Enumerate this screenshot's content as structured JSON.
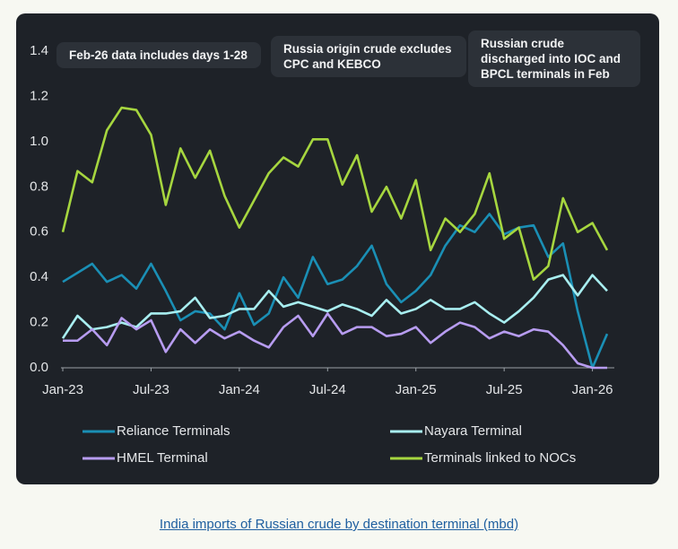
{
  "chart_data": {
    "type": "line",
    "categories": [
      "Jan-23",
      null,
      null,
      null,
      null,
      null,
      "Jul-23",
      null,
      null,
      null,
      null,
      null,
      "Jan-24",
      null,
      null,
      null,
      null,
      null,
      "Jul-24",
      null,
      null,
      null,
      null,
      null,
      "Jan-25",
      null,
      null,
      null,
      null,
      null,
      "Jul-25",
      null,
      null,
      null,
      null,
      null,
      "Jan-26",
      null
    ],
    "ylim": [
      0,
      1.4
    ],
    "yticks": [
      {
        "value": 0,
        "label": "0.0"
      },
      0.2,
      0.4,
      0.6,
      0.8,
      {
        "value": 1,
        "label": "1.0"
      },
      1.2,
      1.4
    ],
    "annotations": [
      "Feb-26 data includes days 1-28",
      "Russia origin crude excludes CPC and KEBCO",
      "Russian crude discharged into IOC and BPCL terminals in Feb"
    ],
    "series": [
      {
        "name": "Reliance Terminals",
        "color": "#1a8fb5",
        "values": [
          0.38,
          0.42,
          0.46,
          0.38,
          0.41,
          0.35,
          0.46,
          0.34,
          0.21,
          0.25,
          0.24,
          0.17,
          0.33,
          0.19,
          0.24,
          0.4,
          0.31,
          0.49,
          0.37,
          0.39,
          0.45,
          0.54,
          0.37,
          0.29,
          0.34,
          0.41,
          0.54,
          0.63,
          0.6,
          0.68,
          0.59,
          0.62,
          0.63,
          0.49,
          0.55,
          0.25,
          0,
          0.15
        ]
      },
      {
        "name": "Nayara Terminal",
        "color": "#a8eef0",
        "values": [
          0.13,
          0.23,
          0.17,
          0.18,
          0.2,
          0.18,
          0.24,
          0.24,
          0.25,
          0.31,
          0.22,
          0.23,
          0.26,
          0.26,
          0.34,
          0.27,
          0.29,
          0.27,
          0.25,
          0.28,
          0.26,
          0.23,
          0.3,
          0.24,
          0.26,
          0.3,
          0.26,
          0.26,
          0.29,
          0.24,
          0.2,
          0.25,
          0.31,
          0.39,
          0.41,
          0.32,
          0.41,
          0.34
        ]
      },
      {
        "name": "HMEL Terminal",
        "color": "#b79cf0",
        "values": [
          0.12,
          0.12,
          0.17,
          0.1,
          0.22,
          0.17,
          0.21,
          0.07,
          0.17,
          0.11,
          0.17,
          0.13,
          0.16,
          0.12,
          0.09,
          0.18,
          0.23,
          0.14,
          0.24,
          0.15,
          0.18,
          0.18,
          0.14,
          0.15,
          0.18,
          0.11,
          0.16,
          0.2,
          0.18,
          0.13,
          0.16,
          0.14,
          0.17,
          0.16,
          0.1,
          0.02,
          0,
          0
        ]
      },
      {
        "name": "Terminals linked to NOCs",
        "color": "#a6d63f",
        "values": [
          0.6,
          0.87,
          0.82,
          1.05,
          1.15,
          1.14,
          1.03,
          0.72,
          0.97,
          0.84,
          0.96,
          0.76,
          0.62,
          0.74,
          0.86,
          0.93,
          0.89,
          1.01,
          1.01,
          0.81,
          0.94,
          0.69,
          0.8,
          0.66,
          0.83,
          0.52,
          0.66,
          0.6,
          0.68,
          0.86,
          0.57,
          0.62,
          0.39,
          0.45,
          0.75,
          0.6,
          0.64,
          0.52
        ]
      }
    ]
  },
  "caption": "India imports of Russian crude by destination terminal (mbd)"
}
